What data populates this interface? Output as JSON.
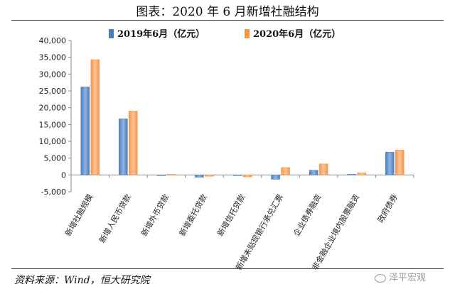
{
  "header": {
    "title": "图表：2020 年 6 月新增社融结构"
  },
  "chart_data": {
    "type": "bar",
    "categories": [
      "新增社融规模",
      "新增人民币贷款",
      "新增外币贷款",
      "新增委托贷款",
      "新增信托贷款",
      "新增未贴现银行承兑汇票",
      "企业债券融资",
      "非金融企业境内股票融资",
      "政府债券"
    ],
    "series": [
      {
        "name": "2019年6月（亿元）",
        "color": "#4a7ebb",
        "values": [
          26200,
          16700,
          -100,
          -700,
          -100,
          -1300,
          1400,
          200,
          6800
        ]
      },
      {
        "name": "2020年6月（亿元）",
        "color": "#f79646",
        "values": [
          34300,
          19000,
          200,
          -400,
          -600,
          2200,
          3300,
          600,
          7400
        ]
      }
    ],
    "ylim": [
      -5000,
      40000
    ],
    "yticks": [
      "-5,000",
      "0",
      "5,000",
      "10,000",
      "15,000",
      "20,000",
      "25,000",
      "30,000",
      "35,000",
      "40,000"
    ],
    "ytick_values": [
      -5000,
      0,
      5000,
      10000,
      15000,
      20000,
      25000,
      30000,
      35000,
      40000
    ],
    "legend_position": "top"
  },
  "footer": {
    "source": "资料来源：Wind，恒大研究院",
    "watermark": "泽平宏观"
  }
}
